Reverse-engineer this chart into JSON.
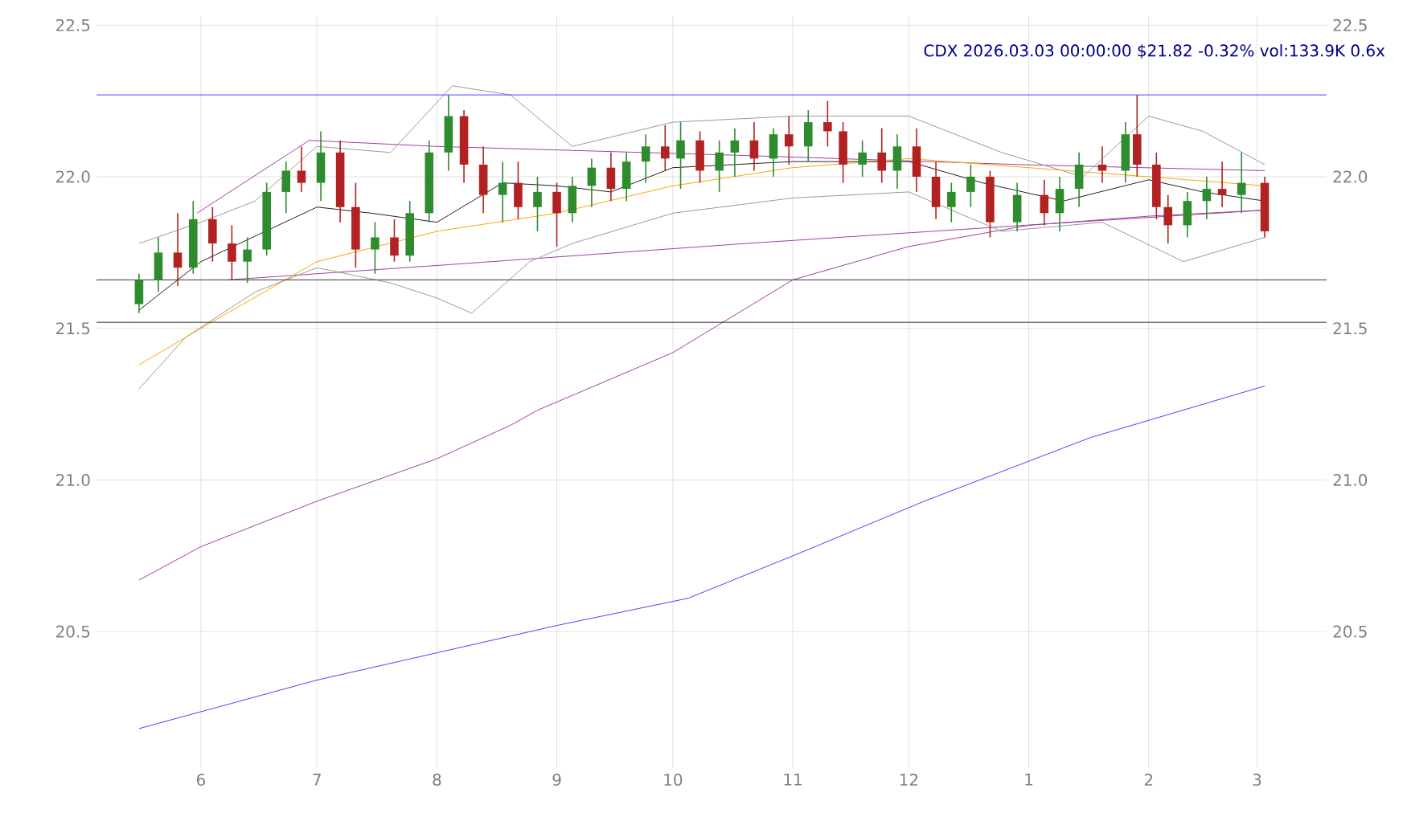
{
  "chart_data": {
    "type": "candlestick",
    "title": "CDX 2026.03.03 00:00:00 $21.82 -0.32% vol:133.9K 0.6x",
    "x": [
      "2025-05-16",
      "2025-05-21",
      "2025-05-26",
      "2025-05-30",
      "2025-06-04",
      "2025-06-09",
      "2025-06-13",
      "2025-06-18",
      "2025-06-23",
      "2025-06-27",
      "2025-07-02",
      "2025-07-07",
      "2025-07-11",
      "2025-07-16",
      "2025-07-21",
      "2025-07-25",
      "2025-07-30",
      "2025-08-04",
      "2025-08-08",
      "2025-08-13",
      "2025-08-18",
      "2025-08-22",
      "2025-08-27",
      "2025-09-01",
      "2025-09-05",
      "2025-09-10",
      "2025-09-15",
      "2025-09-19",
      "2025-09-24",
      "2025-09-29",
      "2025-10-03",
      "2025-10-08",
      "2025-10-13",
      "2025-10-17",
      "2025-10-22",
      "2025-10-27",
      "2025-10-31",
      "2025-11-05",
      "2025-11-10",
      "2025-11-14",
      "2025-11-19",
      "2025-11-24",
      "2025-11-28",
      "2025-12-03",
      "2025-12-08",
      "2025-12-12",
      "2025-12-17",
      "2025-12-22",
      "2025-12-29",
      "2026-01-05",
      "2026-01-09",
      "2026-01-14",
      "2026-01-20",
      "2026-01-26",
      "2026-01-29",
      "2026-02-03",
      "2026-02-06",
      "2026-02-11",
      "2026-02-16",
      "2026-02-20",
      "2026-02-25",
      "2026-03-03"
    ],
    "ohlc": [
      [
        21.58,
        21.68,
        21.55,
        21.66
      ],
      [
        21.66,
        21.8,
        21.62,
        21.75
      ],
      [
        21.75,
        21.88,
        21.64,
        21.7
      ],
      [
        21.7,
        21.92,
        21.68,
        21.86
      ],
      [
        21.86,
        21.9,
        21.72,
        21.78
      ],
      [
        21.78,
        21.84,
        21.66,
        21.72
      ],
      [
        21.72,
        21.8,
        21.65,
        21.76
      ],
      [
        21.76,
        21.98,
        21.74,
        21.95
      ],
      [
        21.95,
        22.05,
        21.88,
        22.02
      ],
      [
        22.02,
        22.1,
        21.95,
        21.98
      ],
      [
        21.98,
        22.15,
        21.92,
        22.08
      ],
      [
        22.08,
        22.12,
        21.85,
        21.9
      ],
      [
        21.9,
        21.98,
        21.7,
        21.76
      ],
      [
        21.76,
        21.85,
        21.68,
        21.8
      ],
      [
        21.8,
        21.86,
        21.72,
        21.74
      ],
      [
        21.74,
        21.92,
        21.72,
        21.88
      ],
      [
        21.88,
        22.12,
        21.85,
        22.08
      ],
      [
        22.08,
        22.27,
        22.02,
        22.2
      ],
      [
        22.2,
        22.22,
        21.98,
        22.04
      ],
      [
        22.04,
        22.1,
        21.88,
        21.94
      ],
      [
        21.94,
        22.05,
        21.85,
        21.98
      ],
      [
        21.98,
        22.05,
        21.86,
        21.9
      ],
      [
        21.9,
        22.0,
        21.82,
        21.95
      ],
      [
        21.95,
        21.98,
        21.77,
        21.88
      ],
      [
        21.88,
        22.0,
        21.85,
        21.97
      ],
      [
        21.97,
        22.06,
        21.9,
        22.03
      ],
      [
        22.03,
        22.08,
        21.92,
        21.96
      ],
      [
        21.96,
        22.08,
        21.92,
        22.05
      ],
      [
        22.05,
        22.14,
        21.98,
        22.1
      ],
      [
        22.1,
        22.17,
        22.02,
        22.06
      ],
      [
        22.06,
        22.18,
        21.96,
        22.12
      ],
      [
        22.12,
        22.15,
        21.98,
        22.02
      ],
      [
        22.02,
        22.12,
        21.95,
        22.08
      ],
      [
        22.08,
        22.16,
        22.0,
        22.12
      ],
      [
        22.12,
        22.18,
        22.02,
        22.06
      ],
      [
        22.06,
        22.16,
        22.0,
        22.14
      ],
      [
        22.14,
        22.2,
        22.04,
        22.1
      ],
      [
        22.1,
        22.22,
        22.05,
        22.18
      ],
      [
        22.18,
        22.25,
        22.1,
        22.15
      ],
      [
        22.15,
        22.18,
        21.98,
        22.04
      ],
      [
        22.04,
        22.12,
        22.0,
        22.08
      ],
      [
        22.08,
        22.16,
        21.98,
        22.02
      ],
      [
        22.02,
        22.14,
        21.96,
        22.1
      ],
      [
        22.1,
        22.16,
        21.95,
        22.0
      ],
      [
        22.0,
        22.05,
        21.86,
        21.9
      ],
      [
        21.9,
        21.98,
        21.85,
        21.95
      ],
      [
        21.95,
        22.04,
        21.9,
        22.0
      ],
      [
        22.0,
        22.02,
        21.8,
        21.85
      ],
      [
        21.85,
        21.98,
        21.82,
        21.94
      ],
      [
        21.94,
        21.99,
        21.84,
        21.88
      ],
      [
        21.88,
        22.0,
        21.82,
        21.96
      ],
      [
        21.96,
        22.08,
        21.9,
        22.04
      ],
      [
        22.04,
        22.1,
        21.98,
        22.02
      ],
      [
        22.02,
        22.18,
        21.98,
        22.14
      ],
      [
        22.14,
        22.27,
        22.0,
        22.04
      ],
      [
        22.04,
        22.08,
        21.86,
        21.9
      ],
      [
        21.9,
        21.94,
        21.78,
        21.84
      ],
      [
        21.84,
        21.95,
        21.8,
        21.92
      ],
      [
        21.92,
        22.0,
        21.86,
        21.96
      ],
      [
        21.96,
        22.05,
        21.9,
        21.94
      ],
      [
        21.94,
        22.08,
        21.88,
        21.98
      ],
      [
        21.98,
        22.0,
        21.8,
        21.82
      ]
    ],
    "series": [
      {
        "type": "line",
        "color": "#4444ff",
        "x": [
          "2025-05-16",
          "2025-07-01",
          "2025-08-01",
          "2025-09-01",
          "2025-10-05",
          "2025-11-03",
          "2025-12-05",
          "2026-01-17",
          "2026-03-03"
        ],
        "values": [
          20.18,
          20.34,
          20.43,
          20.52,
          20.61,
          20.76,
          20.93,
          21.14,
          21.31
        ]
      },
      {
        "type": "line",
        "color": "#a040a0",
        "x": [
          "2025-05-16",
          "2025-06-01",
          "2025-07-01",
          "2025-08-01",
          "2025-08-20",
          "2025-08-27",
          "2025-10-01",
          "2025-11-01",
          "2025-12-01",
          "2026-01-01",
          "2026-02-01",
          "2026-03-03"
        ],
        "values": [
          20.67,
          20.78,
          20.93,
          21.07,
          21.18,
          21.23,
          21.42,
          21.66,
          21.77,
          21.84,
          21.87,
          21.89
        ]
      },
      {
        "type": "line",
        "color": "#a040a0",
        "x": [
          "2025-06-08",
          "2025-08-04",
          "2025-10-20",
          "2025-12-31",
          "2026-03-03"
        ],
        "values": [
          21.66,
          21.71,
          21.78,
          21.84,
          21.89
        ]
      },
      {
        "type": "line",
        "color": "#a040a0",
        "x": [
          "2025-05-31",
          "2025-06-29",
          "2025-08-01",
          "2025-10-20",
          "2025-12-30",
          "2026-03-03"
        ],
        "values": [
          21.88,
          22.12,
          22.1,
          22.07,
          22.04,
          22.02
        ]
      },
      {
        "type": "line",
        "color": "#999999",
        "x": [
          "2025-05-16",
          "2025-06-01",
          "2025-06-15",
          "2025-07-01",
          "2025-07-20",
          "2025-08-05",
          "2025-08-20",
          "2025-09-05",
          "2025-10-01",
          "2025-11-01",
          "2025-12-01",
          "2025-12-25",
          "2026-01-15",
          "2026-02-01",
          "2026-02-15",
          "2026-03-03"
        ],
        "values": [
          21.78,
          21.85,
          21.92,
          22.1,
          22.08,
          22.3,
          22.27,
          22.1,
          22.18,
          22.2,
          22.2,
          22.08,
          22.0,
          22.2,
          22.15,
          22.04
        ]
      },
      {
        "type": "line",
        "color": "#999999",
        "x": [
          "2025-05-16",
          "2025-05-28",
          "2025-06-15",
          "2025-07-01",
          "2025-07-20",
          "2025-08-01",
          "2025-08-10",
          "2025-08-25",
          "2025-09-05",
          "2025-10-01",
          "2025-11-01",
          "2025-12-01",
          "2025-12-25",
          "2026-01-20",
          "2026-02-10",
          "2026-03-03"
        ],
        "values": [
          21.3,
          21.47,
          21.62,
          21.7,
          21.65,
          21.6,
          21.55,
          21.72,
          21.78,
          21.88,
          21.93,
          21.95,
          21.82,
          21.85,
          21.72,
          21.8
        ]
      },
      {
        "type": "line",
        "color": "#ffa500",
        "x": [
          "2025-05-16",
          "2025-06-01",
          "2025-07-01",
          "2025-08-01",
          "2025-09-01",
          "2025-10-01",
          "2025-11-01",
          "2025-12-01",
          "2026-01-01",
          "2026-02-01",
          "2026-03-03"
        ],
        "values": [
          21.38,
          21.5,
          21.72,
          21.82,
          21.88,
          21.97,
          22.03,
          22.06,
          22.03,
          22.0,
          21.97
        ]
      },
      {
        "type": "line",
        "color": "#222222",
        "x": [
          "2025-05-16",
          "2025-06-01",
          "2025-07-01",
          "2025-07-15",
          "2025-08-01",
          "2025-08-18",
          "2025-09-01",
          "2025-09-15",
          "2025-10-01",
          "2025-11-01",
          "2025-12-01",
          "2025-12-20",
          "2026-01-10",
          "2026-02-01",
          "2026-02-15",
          "2026-03-03"
        ],
        "values": [
          21.56,
          21.72,
          21.9,
          21.88,
          21.85,
          21.98,
          21.97,
          21.95,
          22.03,
          22.05,
          22.05,
          21.98,
          21.92,
          21.99,
          21.95,
          21.92
        ]
      }
    ],
    "ref_lines": [
      {
        "axis": "y",
        "value": 22.27,
        "color": "#4444ff"
      },
      {
        "axis": "y",
        "value": 21.66,
        "color": "#333333"
      },
      {
        "axis": "y",
        "value": 21.52,
        "color": "#333333"
      }
    ],
    "xlim": [
      "2025-05-05",
      "2026-03-19"
    ],
    "xticks": [
      {
        "value": "2025-06-01",
        "label": "6"
      },
      {
        "value": "2025-07-01",
        "label": "7"
      },
      {
        "value": "2025-08-01",
        "label": "8"
      },
      {
        "value": "2025-09-01",
        "label": "9"
      },
      {
        "value": "2025-10-01",
        "label": "10"
      },
      {
        "value": "2025-11-01",
        "label": "11"
      },
      {
        "value": "2025-12-01",
        "label": "12"
      },
      {
        "value": "2026-01-01",
        "label": "1"
      },
      {
        "value": "2026-02-01",
        "label": "2"
      },
      {
        "value": "2026-03-01",
        "label": "3"
      }
    ],
    "ylim": [
      20.05,
      22.53
    ],
    "yticks": [
      20.5,
      {
        "value": 21,
        "label": "21.0"
      },
      21.5,
      {
        "value": 22,
        "label": "22.0"
      },
      22.5
    ],
    "y2lim": [
      20.05,
      22.53
    ],
    "y2ticks": [
      20.5,
      {
        "value": 21,
        "label": "21.0"
      },
      21.5,
      {
        "value": 22,
        "label": "22.0"
      },
      22.5
    ],
    "grid": true
  }
}
